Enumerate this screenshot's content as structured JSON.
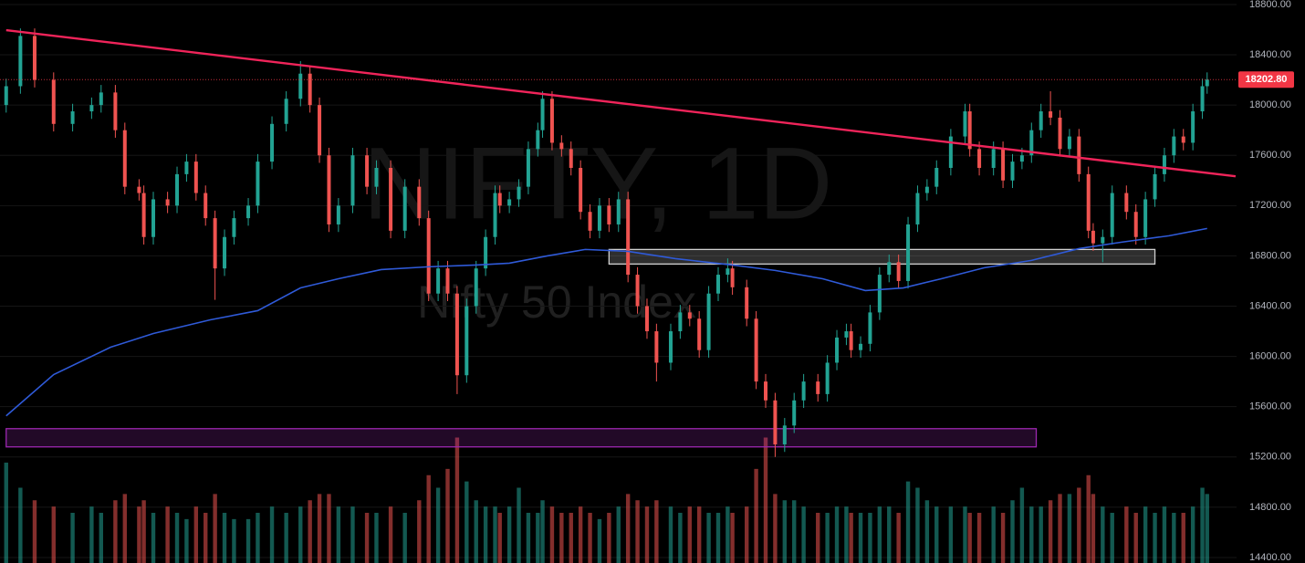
{
  "chart_data": {
    "type": "candlestick",
    "watermark_title": "NIFTY, 1D",
    "watermark_subtitle": "Nifty 50 Index",
    "up_color": "#22a393",
    "down_color": "#ef5350",
    "grid": true,
    "xlim": [
      -1.3,
      259.2
    ],
    "ylim": [
      14356,
      18836
    ],
    "vlim": [
      0,
      120
    ],
    "yticks": [
      {
        "value": 14400,
        "label": "14400.00"
      },
      {
        "value": 14800,
        "label": "14800.00"
      },
      {
        "value": 15200,
        "label": "15200.00"
      },
      {
        "value": 15600,
        "label": "15600.00"
      },
      {
        "value": 16000,
        "label": "16000.00"
      },
      {
        "value": 16400,
        "label": "16400.00"
      },
      {
        "value": 16800,
        "label": "16800.00"
      },
      {
        "value": 17200,
        "label": "17200.00"
      },
      {
        "value": 17600,
        "label": "17600.00"
      },
      {
        "value": 18000,
        "label": "18000.00"
      },
      {
        "value": 18400,
        "label": "18400.00"
      },
      {
        "value": 18800,
        "label": "18800.00"
      }
    ],
    "last_price": {
      "value": 18202.8,
      "label": "18202.80",
      "color": "#f23645"
    },
    "x": [
      0,
      3,
      6,
      10,
      14,
      18,
      20,
      23,
      25,
      28,
      29,
      31,
      34,
      36,
      38,
      40,
      42,
      44,
      46,
      48,
      51,
      53,
      56,
      59,
      62,
      64,
      66,
      68,
      70,
      73,
      76,
      78,
      81,
      84,
      87,
      89,
      91,
      93,
      95,
      97,
      99,
      101,
      103,
      104,
      106,
      108,
      110,
      112,
      113,
      115,
      117,
      119,
      121,
      123,
      125,
      127,
      129,
      131,
      133,
      135,
      137,
      140,
      142,
      144,
      146,
      148,
      150,
      152,
      153,
      156,
      158,
      160,
      162,
      164,
      166,
      168,
      171,
      173,
      175,
      177,
      178,
      180,
      182,
      184,
      186,
      188,
      190,
      192,
      194,
      196,
      199,
      202,
      203,
      205,
      208,
      210,
      212,
      214,
      216,
      218,
      220,
      222,
      224,
      226,
      228,
      229,
      231,
      233,
      236,
      238,
      240,
      242,
      244,
      246,
      248,
      250,
      252,
      253
    ],
    "candles": [
      [
        18000,
        18210,
        17940,
        18150
      ],
      [
        18150,
        18610,
        18090,
        18550
      ],
      [
        18550,
        18610,
        18140,
        18200
      ],
      [
        18200,
        18260,
        17790,
        17850
      ],
      [
        17850,
        18010,
        17790,
        17950
      ],
      [
        17950,
        18060,
        17890,
        18000
      ],
      [
        18000,
        18160,
        17940,
        18100
      ],
      [
        18100,
        18160,
        17740,
        17800
      ],
      [
        17800,
        17860,
        17290,
        17350
      ],
      [
        17350,
        17410,
        17240,
        17300
      ],
      [
        17300,
        17360,
        16890,
        16950
      ],
      [
        16950,
        17310,
        16890,
        17250
      ],
      [
        17250,
        17310,
        17140,
        17200
      ],
      [
        17200,
        17510,
        17140,
        17450
      ],
      [
        17450,
        17610,
        17390,
        17550
      ],
      [
        17550,
        17610,
        17240,
        17300
      ],
      [
        17300,
        17360,
        17040,
        17100
      ],
      [
        17100,
        17160,
        16450,
        16700
      ],
      [
        16700,
        17010,
        16640,
        16950
      ],
      [
        16950,
        17160,
        16890,
        17100
      ],
      [
        17100,
        17260,
        17040,
        17200
      ],
      [
        17200,
        17610,
        17140,
        17550
      ],
      [
        17550,
        17910,
        17490,
        17850
      ],
      [
        17850,
        18110,
        17790,
        18050
      ],
      [
        18050,
        18350,
        17990,
        18250
      ],
      [
        18250,
        18310,
        17940,
        18000
      ],
      [
        18000,
        18060,
        17540,
        17600
      ],
      [
        17600,
        17660,
        16990,
        17050
      ],
      [
        17050,
        17260,
        16990,
        17200
      ],
      [
        17200,
        17660,
        17140,
        17600
      ],
      [
        17600,
        17660,
        17290,
        17350
      ],
      [
        17350,
        17560,
        17290,
        17500
      ],
      [
        17500,
        17560,
        16940,
        17000
      ],
      [
        17000,
        17410,
        16940,
        17350
      ],
      [
        17350,
        17410,
        17040,
        17100
      ],
      [
        17100,
        17160,
        16440,
        16500
      ],
      [
        16500,
        16760,
        16440,
        16700
      ],
      [
        16700,
        16760,
        16440,
        16500
      ],
      [
        16500,
        16560,
        15700,
        15850
      ],
      [
        15850,
        16460,
        15790,
        16400
      ],
      [
        16400,
        16760,
        16340,
        16700
      ],
      [
        16700,
        17010,
        16640,
        16950
      ],
      [
        16950,
        17360,
        16890,
        17300
      ],
      [
        17300,
        17360,
        17140,
        17200
      ],
      [
        17200,
        17310,
        17140,
        17250
      ],
      [
        17250,
        17410,
        17190,
        17350
      ],
      [
        17350,
        17710,
        17290,
        17650
      ],
      [
        17650,
        17860,
        17590,
        17800
      ],
      [
        17800,
        18110,
        17740,
        18050
      ],
      [
        18050,
        18110,
        17640,
        17700
      ],
      [
        17700,
        17760,
        17590,
        17650
      ],
      [
        17650,
        17710,
        17440,
        17500
      ],
      [
        17500,
        17560,
        17090,
        17150
      ],
      [
        17150,
        17210,
        16940,
        17000
      ],
      [
        17000,
        17260,
        16940,
        17200
      ],
      [
        17200,
        17260,
        16990,
        17050
      ],
      [
        17050,
        17310,
        16990,
        17250
      ],
      [
        17250,
        17310,
        16590,
        16650
      ],
      [
        16650,
        16710,
        16340,
        16400
      ],
      [
        16400,
        16460,
        16140,
        16200
      ],
      [
        16200,
        16260,
        15800,
        15950
      ],
      [
        15950,
        16260,
        15890,
        16200
      ],
      [
        16200,
        16410,
        16140,
        16350
      ],
      [
        16350,
        16410,
        16240,
        16300
      ],
      [
        16300,
        16360,
        15990,
        16050
      ],
      [
        16050,
        16560,
        15990,
        16500
      ],
      [
        16500,
        16710,
        16440,
        16650
      ],
      [
        16650,
        16780,
        16590,
        16700
      ],
      [
        16700,
        16760,
        16490,
        16550
      ],
      [
        16550,
        16610,
        16240,
        16300
      ],
      [
        16300,
        16360,
        15740,
        15800
      ],
      [
        15800,
        15860,
        15590,
        15650
      ],
      [
        15650,
        15710,
        15200,
        15300
      ],
      [
        15300,
        15510,
        15240,
        15450
      ],
      [
        15450,
        15710,
        15390,
        15650
      ],
      [
        15650,
        15860,
        15590,
        15800
      ],
      [
        15800,
        15860,
        15640,
        15700
      ],
      [
        15700,
        16010,
        15640,
        15950
      ],
      [
        15950,
        16210,
        15890,
        16150
      ],
      [
        16150,
        16260,
        16090,
        16200
      ],
      [
        16200,
        16260,
        15990,
        16050
      ],
      [
        16050,
        16160,
        15990,
        16100
      ],
      [
        16100,
        16410,
        16040,
        16350
      ],
      [
        16350,
        16710,
        16290,
        16650
      ],
      [
        16650,
        16810,
        16590,
        16750
      ],
      [
        16750,
        16810,
        16540,
        16600
      ],
      [
        16600,
        17110,
        16540,
        17050
      ],
      [
        17050,
        17360,
        16990,
        17300
      ],
      [
        17300,
        17410,
        17240,
        17350
      ],
      [
        17350,
        17560,
        17290,
        17500
      ],
      [
        17500,
        17810,
        17440,
        17750
      ],
      [
        17750,
        18010,
        17690,
        17950
      ],
      [
        17950,
        18010,
        17590,
        17650
      ],
      [
        17650,
        17710,
        17440,
        17500
      ],
      [
        17500,
        17710,
        17440,
        17650
      ],
      [
        17650,
        17710,
        17340,
        17400
      ],
      [
        17400,
        17610,
        17340,
        17550
      ],
      [
        17550,
        17660,
        17490,
        17600
      ],
      [
        17600,
        17860,
        17540,
        17800
      ],
      [
        17800,
        18010,
        17740,
        17950
      ],
      [
        17950,
        18110,
        17840,
        17900
      ],
      [
        17900,
        17960,
        17590,
        17650
      ],
      [
        17650,
        17810,
        17590,
        17750
      ],
      [
        17750,
        17810,
        17390,
        17450
      ],
      [
        17450,
        17510,
        16940,
        17000
      ],
      [
        17000,
        17060,
        16840,
        16900
      ],
      [
        16900,
        17010,
        16750,
        16950
      ],
      [
        16950,
        17360,
        16890,
        17300
      ],
      [
        17300,
        17360,
        17090,
        17150
      ],
      [
        17150,
        17210,
        16890,
        16950
      ],
      [
        16950,
        17310,
        16890,
        17250
      ],
      [
        17250,
        17510,
        17190,
        17450
      ],
      [
        17450,
        17660,
        17390,
        17600
      ],
      [
        17600,
        17810,
        17540,
        17750
      ],
      [
        17750,
        17810,
        17640,
        17700
      ],
      [
        17700,
        18010,
        17640,
        17950
      ],
      [
        17950,
        18210,
        17890,
        18150
      ],
      [
        18150,
        18260,
        18090,
        18202.8
      ]
    ],
    "volume": [
      80,
      60,
      50,
      45,
      40,
      45,
      40,
      50,
      55,
      45,
      50,
      40,
      45,
      40,
      35,
      45,
      40,
      55,
      40,
      35,
      35,
      40,
      45,
      40,
      45,
      50,
      55,
      55,
      45,
      45,
      40,
      40,
      45,
      40,
      50,
      70,
      60,
      75,
      100,
      65,
      50,
      45,
      45,
      40,
      45,
      60,
      40,
      40,
      50,
      45,
      40,
      40,
      45,
      40,
      35,
      40,
      45,
      55,
      50,
      45,
      50,
      45,
      40,
      45,
      45,
      40,
      40,
      45,
      40,
      45,
      75,
      100,
      55,
      50,
      50,
      45,
      40,
      40,
      45,
      45,
      40,
      40,
      40,
      45,
      45,
      40,
      65,
      60,
      50,
      45,
      45,
      45,
      40,
      40,
      45,
      40,
      50,
      60,
      45,
      45,
      50,
      55,
      55,
      60,
      70,
      55,
      45,
      40,
      45,
      40,
      45,
      40,
      45,
      40,
      40,
      45,
      60,
      55
    ],
    "ma": {
      "color": "#2f5ad8",
      "x": [
        0,
        10,
        22,
        31,
        43,
        53,
        62,
        70,
        79,
        89,
        99,
        106,
        114,
        122,
        131,
        141,
        153,
        162,
        172,
        181,
        189,
        197,
        206,
        216,
        226,
        235,
        245,
        253
      ],
      "values": [
        15527,
        15855,
        16073,
        16182,
        16291,
        16364,
        16545,
        16618,
        16691,
        16713,
        16727,
        16742,
        16800,
        16851,
        16836,
        16778,
        16727,
        16684,
        16618,
        16524,
        16545,
        16618,
        16705,
        16764,
        16858,
        16909,
        16960,
        17018
      ]
    },
    "trendline": {
      "color": "#f0245a",
      "x": [
        0,
        259
      ],
      "values": [
        18596,
        17433
      ]
    },
    "zones": [
      {
        "x": [
          127,
          242
        ],
        "values": [
          16851,
          16735
        ],
        "color": "#d0d0d0"
      },
      {
        "x": [
          0,
          217
        ],
        "values": [
          15425,
          15280
        ],
        "color": "#9c27b0"
      }
    ]
  }
}
